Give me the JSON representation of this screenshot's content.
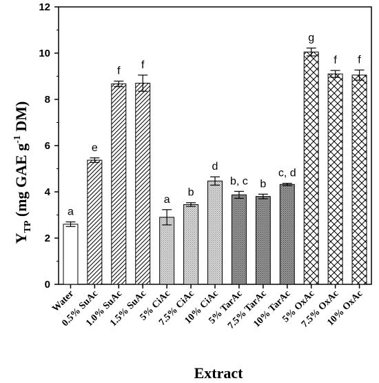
{
  "chart_data": {
    "type": "bar",
    "xlabel": "Extract",
    "ylabel": {
      "main": "Y",
      "sub": "TP",
      "unit_start": " (mg GAE g",
      "sup": "-1",
      "unit_end": " DM)"
    },
    "ylim": [
      0,
      12
    ],
    "yticks": [
      0,
      2,
      4,
      6,
      8,
      10,
      12
    ],
    "grid": false,
    "categories": [
      "Water",
      "0.5% SuAc",
      "1.0% SuAc",
      "1.5% SuAc",
      "5% CiAc",
      "7.5% CiAc",
      "10% CiAc",
      "5% TarAc",
      "7.5% TarAc",
      "10% TarAc",
      "5% OxAc",
      "7.5% OxAc",
      "10% OxAc"
    ],
    "values": [
      2.6,
      5.37,
      8.67,
      8.7,
      2.9,
      3.45,
      4.47,
      3.87,
      3.8,
      4.32,
      10.05,
      9.1,
      9.05
    ],
    "errors": [
      0.1,
      0.1,
      0.12,
      0.35,
      0.33,
      0.08,
      0.18,
      0.15,
      0.1,
      0.05,
      0.17,
      0.15,
      0.22
    ],
    "letters": [
      "a",
      "e",
      "f",
      "f",
      "a",
      "b",
      "d",
      "b, c",
      "b",
      "c, d",
      "g",
      "f",
      "f"
    ],
    "patterns": [
      "white",
      "hatch",
      "hatch",
      "hatch",
      "dots-light",
      "dots-light",
      "dots-light",
      "dots-dark",
      "dots-dark",
      "dots-dark",
      "crosshatch",
      "crosshatch",
      "crosshatch"
    ]
  }
}
